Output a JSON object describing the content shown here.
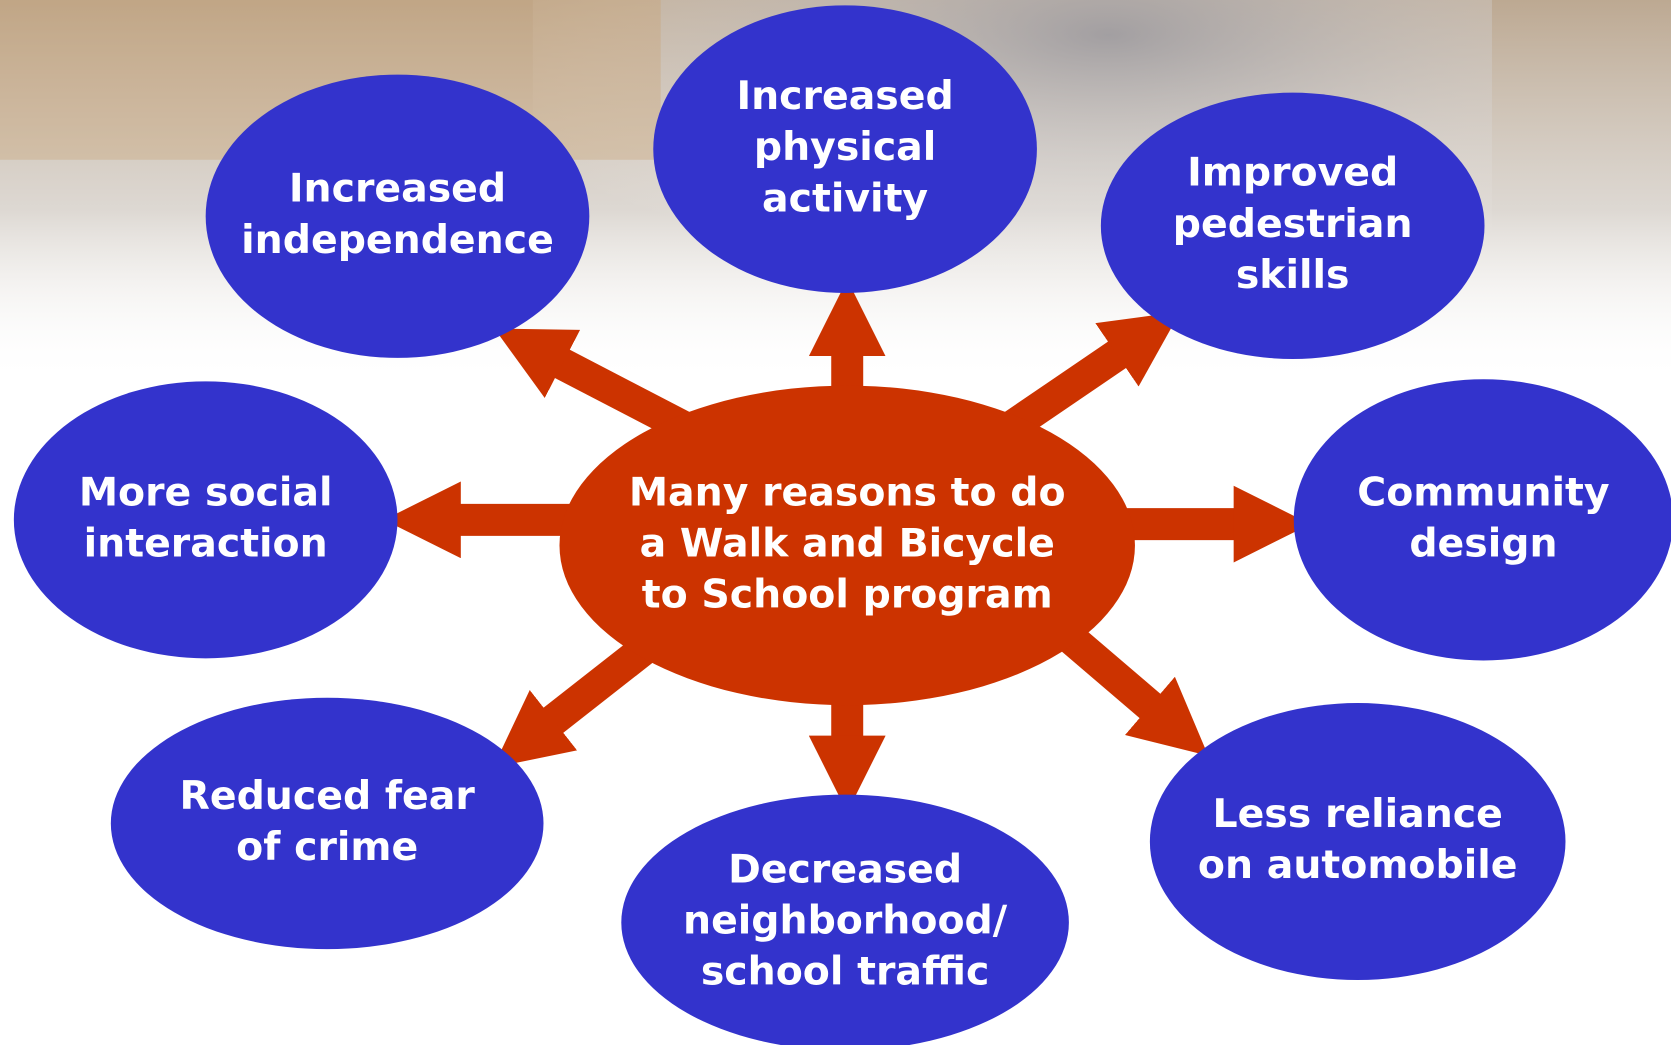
{
  "center": {
    "lines": [
      "Many reasons to do",
      "a Walk and Bicycle",
      "to School program"
    ]
  },
  "nodes": [
    {
      "lines": [
        "Increased",
        "independence"
      ]
    },
    {
      "lines": [
        "Increased",
        "physical",
        "activity"
      ]
    },
    {
      "lines": [
        "Improved",
        "pedestrian",
        "skills"
      ]
    },
    {
      "lines": [
        "More social",
        "interaction"
      ]
    },
    {
      "lines": [
        "Community",
        "design"
      ]
    },
    {
      "lines": [
        "Reduced fear",
        "of crime"
      ]
    },
    {
      "lines": [
        "Decreased",
        "neighborhood/",
        "school traffic"
      ]
    },
    {
      "lines": [
        "Less reliance",
        "on automobile"
      ]
    }
  ]
}
